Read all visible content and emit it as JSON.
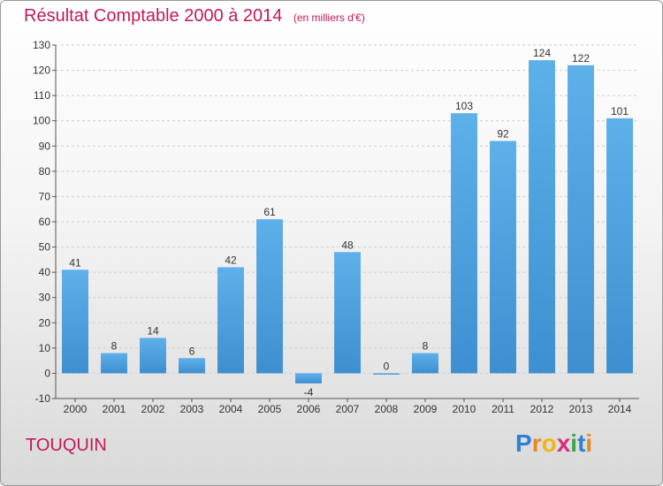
{
  "chart_data": {
    "type": "bar",
    "title": "Résultat Comptable 2000 à 2014",
    "subtitle": "(en milliers d'€)",
    "categories": [
      "2000",
      "2001",
      "2002",
      "2003",
      "2004",
      "2005",
      "2006",
      "2007",
      "2008",
      "2009",
      "2010",
      "2011",
      "2012",
      "2013",
      "2014"
    ],
    "values": [
      41,
      8,
      14,
      6,
      42,
      61,
      -4,
      48,
      0,
      8,
      103,
      92,
      124,
      122,
      101
    ],
    "ylim": [
      -10,
      130
    ],
    "yticks": [
      -10,
      0,
      10,
      20,
      30,
      40,
      50,
      60,
      70,
      80,
      90,
      100,
      110,
      120,
      130
    ],
    "grid": true,
    "bar_color": "#3d8fd0",
    "bar_color_light": "#5eb0ea"
  },
  "place": "TOUQUIN",
  "logo": {
    "letters": [
      "P",
      "r",
      "o",
      "x",
      "i",
      "t",
      "i"
    ],
    "colors": [
      "#2f7fd4",
      "#e8891d",
      "#f0b616",
      "#d92e7c",
      "#3aa64b",
      "#2f7fd4",
      "#e8891d"
    ]
  },
  "colors": {
    "accent": "#c2185b"
  }
}
